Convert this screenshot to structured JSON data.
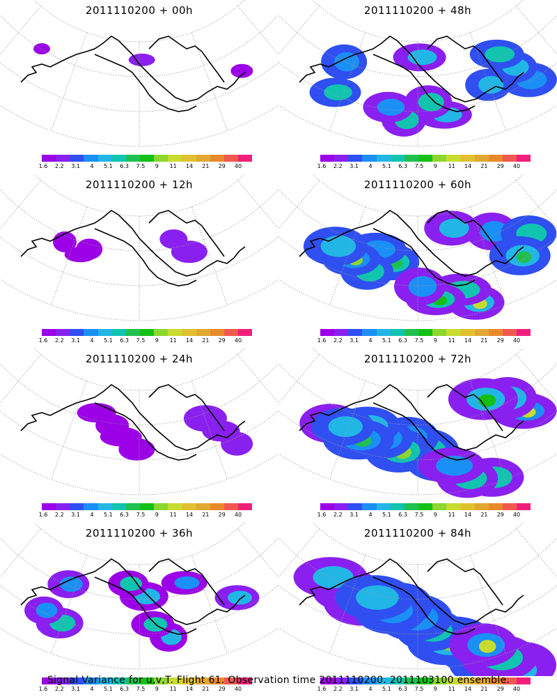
{
  "panels": [
    {
      "title": "2011110200 + 00h",
      "intensity": 0
    },
    {
      "title": "2011110200 + 48h",
      "intensity": 4
    },
    {
      "title": "2011110200 + 12h",
      "intensity": 1
    },
    {
      "title": "2011110200 + 60h",
      "intensity": 5
    },
    {
      "title": "2011110200 + 24h",
      "intensity": 2
    },
    {
      "title": "2011110200 + 72h",
      "intensity": 6
    },
    {
      "title": "2011110200 + 36h",
      "intensity": 3
    },
    {
      "title": "2011110200 + 84h",
      "intensity": 7
    }
  ],
  "colorbar": {
    "colors": [
      "#9b00e6",
      "#8a20ef",
      "#2f4ff0",
      "#1a8ff5",
      "#22b6e6",
      "#10c4b0",
      "#20c050",
      "#14c014",
      "#8cd62e",
      "#c8dc30",
      "#e0c030",
      "#e0a830",
      "#e88a2c",
      "#f05850",
      "#f0207a"
    ],
    "labels": [
      "1.6",
      "2.2",
      "3.1",
      "4",
      "5.1",
      "6.3",
      "7.5",
      "9",
      "11",
      "14",
      "21",
      "29",
      "40"
    ]
  },
  "footer": "Signal Variance for u,v,T. Flight 61. Observation time 2011110200. 2011103100 ensemble."
}
